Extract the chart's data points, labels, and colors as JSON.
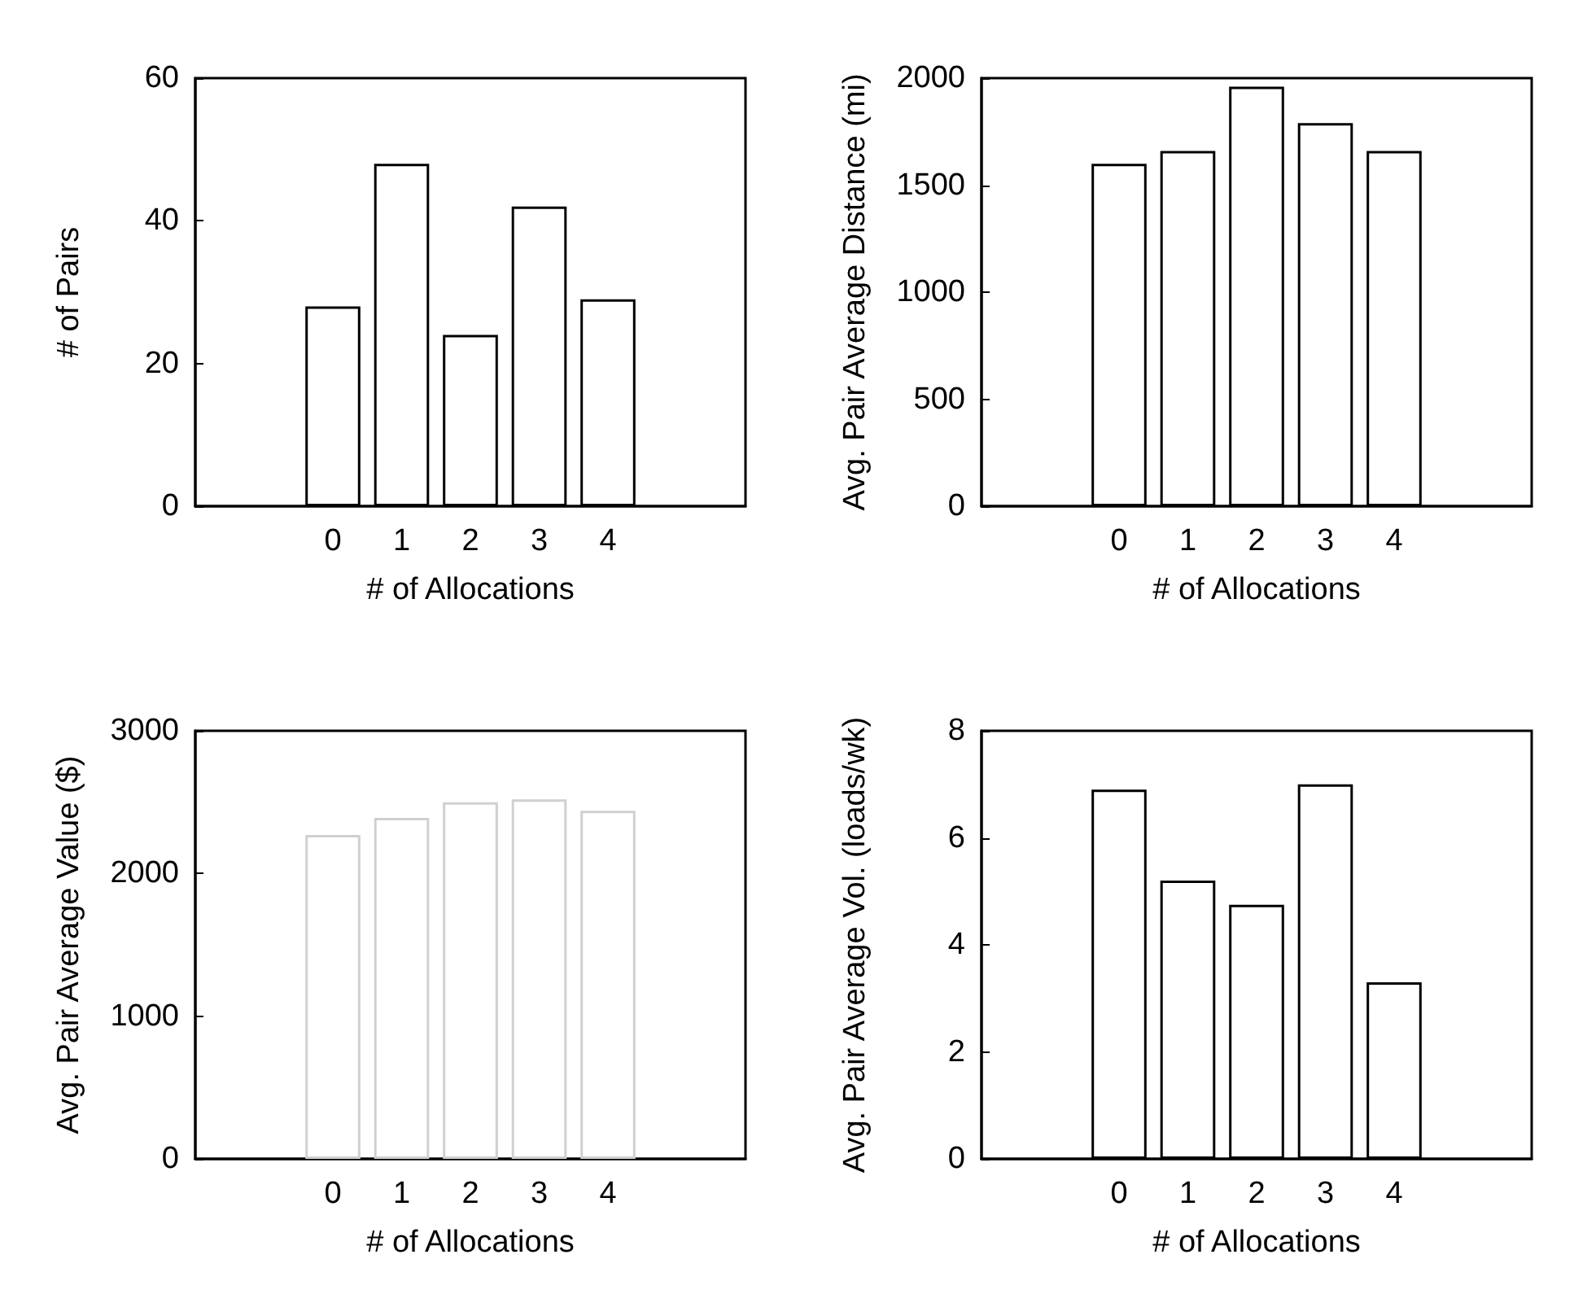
{
  "chart_data": [
    {
      "type": "bar",
      "ylabel": "# of Pairs",
      "xlabel": "# of Allocations",
      "x": [
        0,
        1,
        2,
        3,
        4
      ],
      "values": [
        28,
        48,
        24,
        42,
        29
      ],
      "color": "#000000",
      "xlim": [
        -2,
        6
      ],
      "xticks": [
        0,
        1,
        2,
        3,
        4
      ],
      "ylim": [
        0,
        60
      ],
      "yticks": [
        0,
        20,
        40,
        60
      ]
    },
    {
      "type": "bar",
      "ylabel": "Avg. Pair Average Distance (mi)",
      "xlabel": "# of Allocations",
      "x": [
        0,
        1,
        2,
        3,
        4
      ],
      "values": [
        1600,
        1660,
        1960,
        1790,
        1660
      ],
      "color": "#000000",
      "xlim": [
        -2,
        6
      ],
      "xticks": [
        0,
        1,
        2,
        3,
        4
      ],
      "ylim": [
        0,
        2000
      ],
      "yticks": [
        0,
        500,
        1000,
        1500,
        2000
      ]
    },
    {
      "type": "bar",
      "ylabel": "Avg. Pair Average Value ($)",
      "xlabel": "# of Allocations",
      "x": [
        0,
        1,
        2,
        3,
        4
      ],
      "values": [
        2270,
        2390,
        2500,
        2520,
        2440
      ],
      "color": "#d0d0d0",
      "xlim": [
        -2,
        6
      ],
      "xticks": [
        0,
        1,
        2,
        3,
        4
      ],
      "ylim": [
        0,
        3000
      ],
      "yticks": [
        0,
        1000,
        2000,
        3000
      ]
    },
    {
      "type": "bar",
      "ylabel": "Avg. Pair Average Vol. (loads/wk)",
      "xlabel": "# of Allocations",
      "x": [
        0,
        1,
        2,
        3,
        4
      ],
      "values": [
        6.9,
        5.2,
        4.75,
        7.0,
        3.3
      ],
      "color": "#000000",
      "xlim": [
        -2,
        6
      ],
      "xticks": [
        0,
        1,
        2,
        3,
        4
      ],
      "ylim": [
        0,
        8
      ],
      "yticks": [
        0,
        2,
        4,
        6,
        8
      ]
    }
  ]
}
